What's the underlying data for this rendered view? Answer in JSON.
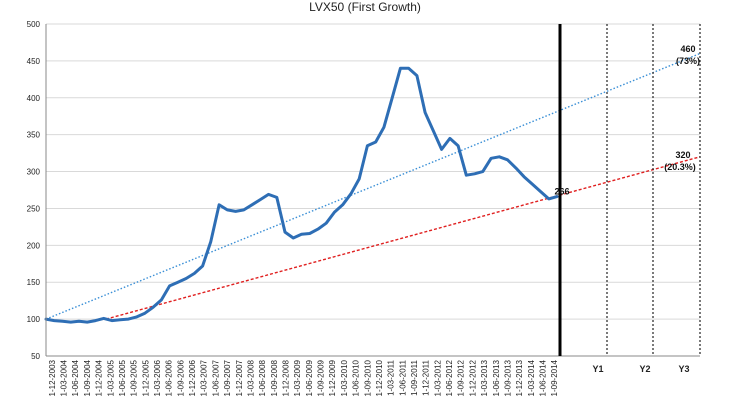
{
  "chart_data": {
    "type": "line",
    "title": "LVX50 (First Growth)",
    "ylim": [
      50,
      500
    ],
    "yticks": [
      50,
      100,
      150,
      200,
      250,
      300,
      350,
      400,
      450,
      500
    ],
    "grid": "horizontal",
    "colors": {
      "series": "#2e6eb5",
      "trend_upper": "#3a8fd6",
      "trend_lower": "#e02020",
      "axis": "#000000",
      "grid": "#d9d9d9"
    },
    "x_tick_labels": [
      "1-12-2003",
      "1-03-2004",
      "1-06-2004",
      "1-09-2004",
      "1-12-2004",
      "1-03-2005",
      "1-06-2005",
      "1-09-2005",
      "1-12-2005",
      "1-03-2006",
      "1-06-2006",
      "1-09-2006",
      "1-12-2006",
      "1-03-2007",
      "1-06-2007",
      "1-09-2007",
      "1-12-2007",
      "1-03-2008",
      "1-06-2008",
      "1-09-2008",
      "1-12-2008",
      "1-03-2009",
      "1-06-2009",
      "1-09-2009",
      "1-12-2009",
      "1-03-2010",
      "1-06-2010",
      "1-09-2010",
      "1-12-2010",
      "1-03-2011",
      "1-06-2011",
      "1-09-2011",
      "1-12-2011",
      "1-03-2012",
      "1-06-2012",
      "1-09-2012",
      "1-12-2012",
      "1-03-2013",
      "1-06-2013",
      "1-09-2013",
      "1-12-2013",
      "1-03-2014",
      "1-06-2014",
      "1-09-2014"
    ],
    "future_periods": [
      "Y1",
      "Y2",
      "Y3"
    ],
    "series": [
      {
        "values": [
          100,
          98,
          97,
          96,
          97,
          96,
          98,
          101,
          98,
          99,
          100,
          103,
          108,
          116,
          126,
          145,
          150,
          155,
          162,
          172,
          205,
          255,
          248,
          246,
          248,
          255,
          262,
          269,
          265,
          218,
          210,
          215,
          216,
          222,
          230,
          245,
          255,
          270,
          290,
          335,
          340,
          360,
          400,
          440,
          440,
          430,
          380,
          355,
          330,
          345,
          335,
          295,
          297,
          300,
          318,
          320,
          316,
          305,
          293,
          283,
          273,
          263,
          266
        ],
        "x_start_index": 0,
        "x_step_quarters": 0.666
      }
    ],
    "trend_lines": [
      {
        "name": "upper",
        "start": 100,
        "end": 460,
        "style": "dotted"
      },
      {
        "name": "lower",
        "start": 100,
        "end": 320,
        "style": "dashed"
      }
    ],
    "annotations": {
      "current": "266",
      "upper_value": "460",
      "upper_pct": "(73%)",
      "lower_value": "320",
      "lower_pct": "(20.3%)"
    }
  }
}
